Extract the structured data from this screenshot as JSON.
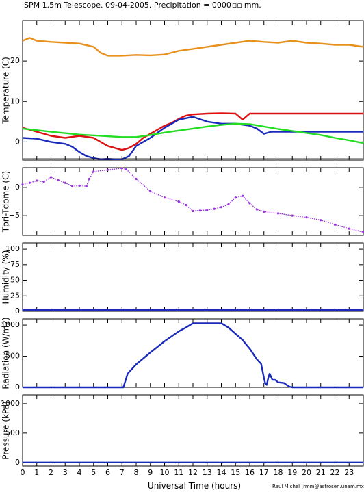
{
  "title": "SPM 1.5m Telescope. 09-04-2005. Precipitation = 0000",
  "title_unit": "mm.",
  "xlabel": "Universal Time (hours)",
  "credit": "Raul Michel (rmm@astrosen.unam.mx)",
  "colors": {
    "orange": "#e8901c",
    "red": "#dd1111",
    "blue": "#1a2bbb",
    "green": "#22dd22",
    "purple": "#9933dd",
    "black": "#000000"
  },
  "chart_data": [
    {
      "type": "line",
      "ylabel": "Temperature (C)",
      "xlim": [
        0,
        24
      ],
      "ylim": [
        -4.5,
        30
      ],
      "yticks": [
        0,
        10,
        20
      ],
      "series": [
        {
          "color": "orange",
          "x": [
            0,
            0.5,
            1,
            2,
            3,
            4,
            5,
            5.5,
            6,
            7,
            8,
            9,
            10,
            11,
            12,
            13,
            14,
            15,
            16,
            17,
            18,
            19,
            20,
            21,
            22,
            23,
            24
          ],
          "y": [
            25,
            25.7,
            25,
            24.7,
            24.5,
            24.3,
            23.5,
            22,
            21.3,
            21.3,
            21.5,
            21.4,
            21.6,
            22.5,
            23,
            23.5,
            24,
            24.5,
            25,
            24.7,
            24.5,
            25,
            24.5,
            24.3,
            24,
            24,
            23.5
          ]
        },
        {
          "color": "red",
          "x": [
            0,
            1,
            2,
            3,
            4,
            5,
            5.5,
            6,
            6.5,
            7,
            7.5,
            8,
            8.5,
            9,
            9.5,
            10,
            10.5,
            11,
            11.5,
            12,
            13,
            14,
            15,
            15.5,
            16,
            17,
            18,
            19,
            20,
            21,
            22,
            23,
            24
          ],
          "y": [
            3.5,
            2.5,
            1.5,
            1,
            1.5,
            1,
            0,
            -1,
            -1.5,
            -2,
            -1.5,
            -0.5,
            1,
            2,
            3,
            4,
            4.7,
            5.7,
            6.5,
            6.8,
            7,
            7.1,
            7,
            5.5,
            7,
            7,
            7,
            7,
            7,
            7,
            7,
            7,
            7
          ]
        },
        {
          "color": "blue",
          "x": [
            0,
            1,
            2,
            3,
            3.5,
            4,
            4.5,
            5,
            5.5,
            6,
            6.5,
            7,
            7.5,
            8,
            9,
            10,
            11,
            12,
            13,
            14,
            15,
            16,
            16.5,
            17,
            17.5,
            18,
            19,
            20,
            21,
            22,
            23,
            24
          ],
          "y": [
            1,
            0.8,
            0,
            -0.5,
            -1.2,
            -2.5,
            -3.5,
            -4,
            -4.3,
            -4.2,
            -4.3,
            -4.3,
            -3.5,
            -1,
            1,
            3.5,
            5.5,
            6.2,
            5,
            4.5,
            4.5,
            4,
            3.3,
            2,
            2.5,
            2.5,
            2.5,
            2.5,
            2.5,
            2.5,
            2.5,
            2.5
          ]
        },
        {
          "color": "green",
          "x": [
            0,
            2,
            4,
            6,
            7,
            8,
            9,
            10,
            11,
            12,
            13,
            14,
            15,
            16,
            17,
            18,
            19,
            20,
            21,
            22,
            23,
            24
          ],
          "y": [
            3.3,
            2.5,
            1.8,
            1.4,
            1.2,
            1.2,
            1.7,
            2.3,
            2.8,
            3.3,
            3.8,
            4.2,
            4.5,
            4.4,
            3.8,
            3.2,
            2.7,
            2.2,
            1.7,
            1,
            0.4,
            -0.3
          ]
        },
        {
          "color": "black",
          "x": [
            0,
            24
          ],
          "y": [
            -4.2,
            -4.2
          ]
        }
      ]
    },
    {
      "type": "scatter",
      "ylabel": "Tpri-Tdome (C)",
      "xlim": [
        0,
        24
      ],
      "ylim": [
        -8.5,
        3.5
      ],
      "yticks": [
        -5,
        0
      ],
      "series": [
        {
          "color": "purple",
          "x": [
            0,
            0.5,
            1,
            1.5,
            2,
            2.5,
            3,
            3.5,
            4,
            4.5,
            4.7,
            5,
            6,
            7,
            7.3,
            8,
            9,
            10,
            11,
            11.5,
            12,
            12.5,
            13,
            13.5,
            14,
            14.5,
            15,
            15.5,
            16,
            16.5,
            17,
            18,
            19,
            20,
            21,
            22,
            23,
            24
          ],
          "y": [
            0.5,
            0.8,
            1.2,
            1,
            1.8,
            1.3,
            0.8,
            0.2,
            0.3,
            0.2,
            1.5,
            2.8,
            3.1,
            3.4,
            3.2,
            1.5,
            -0.7,
            -1.8,
            -2.5,
            -3.1,
            -4.2,
            -4.1,
            -4,
            -3.8,
            -3.5,
            -3,
            -1.8,
            -1.5,
            -2.8,
            -3.9,
            -4.3,
            -4.6,
            -5,
            -5.3,
            -5.8,
            -6.6,
            -7.3,
            -7.9
          ]
        }
      ]
    },
    {
      "type": "line",
      "ylabel": "Humidity (%)",
      "xlim": [
        0,
        24
      ],
      "ylim": [
        0,
        110
      ],
      "yticks": [
        0,
        25,
        50,
        75,
        100
      ],
      "ytick_labels": [
        "0",
        "25",
        "50",
        "75",
        "100"
      ],
      "series": [
        {
          "color": "blue",
          "x": [
            0,
            24
          ],
          "y": [
            2,
            2
          ]
        }
      ]
    },
    {
      "type": "line",
      "ylabel": "Radiation (W/m2)",
      "xlim": [
        0,
        24
      ],
      "ylim": [
        0,
        1100
      ],
      "yticks": [
        0,
        500,
        1000
      ],
      "series": [
        {
          "color": "blue",
          "x": [
            0,
            7.1,
            7.4,
            8,
            9,
            10,
            11,
            11.5,
            12,
            12.5,
            13,
            13.5,
            14,
            14.5,
            15,
            15.5,
            16,
            16.5,
            16.8,
            17,
            17.1,
            17.2,
            17.3,
            17.4,
            17.6,
            17.8,
            18,
            18.4,
            18.6,
            18.8,
            19,
            24
          ],
          "y": [
            0,
            0,
            220,
            370,
            560,
            740,
            900,
            960,
            1030,
            1030,
            1030,
            1030,
            1030,
            960,
            860,
            760,
            620,
            450,
            380,
            150,
            60,
            40,
            150,
            220,
            120,
            120,
            80,
            70,
            40,
            10,
            0,
            0
          ]
        }
      ]
    },
    {
      "type": "line",
      "ylabel": "Pressure (kPa)",
      "xlim": [
        0,
        24
      ],
      "ylim": [
        -60,
        1150
      ],
      "yticks": [
        0,
        500,
        1000
      ],
      "series": [
        {
          "color": "blue",
          "x": [
            0,
            24
          ],
          "y": [
            0,
            0
          ]
        }
      ]
    }
  ],
  "xticks": [
    0,
    1,
    2,
    3,
    4,
    5,
    6,
    7,
    8,
    9,
    10,
    11,
    12,
    13,
    14,
    15,
    16,
    17,
    18,
    19,
    20,
    21,
    22,
    23
  ]
}
